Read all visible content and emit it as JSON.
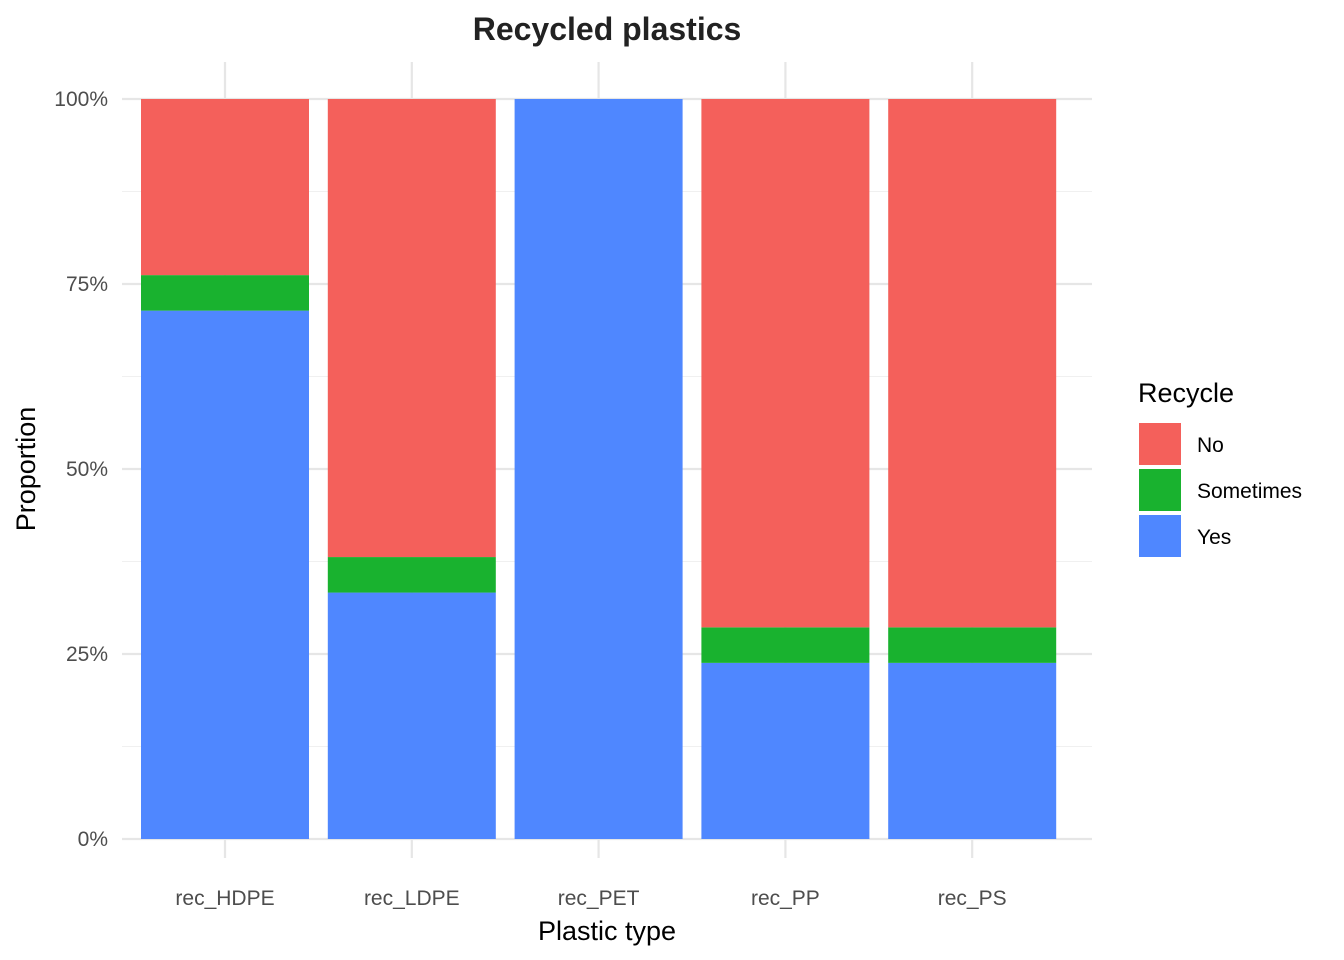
{
  "chart_data": {
    "type": "bar",
    "stacked": true,
    "title": "Recycled plastics",
    "xlabel": "Plastic type",
    "ylabel": "Proportion",
    "ylim": [
      0,
      1
    ],
    "yticks": [
      0,
      0.25,
      0.5,
      0.75,
      1
    ],
    "ytick_labels": [
      "0%",
      "25%",
      "50%",
      "75%",
      "100%"
    ],
    "grid": true,
    "categories": [
      "rec_HDPE",
      "rec_LDPE",
      "rec_PET",
      "rec_PP",
      "rec_PS"
    ],
    "series": [
      {
        "name": "Yes",
        "color": "#4f87ff",
        "values": [
          0.714,
          0.333,
          1.0,
          0.238,
          0.238
        ]
      },
      {
        "name": "Sometimes",
        "color": "#19b22f",
        "values": [
          0.048,
          0.048,
          0.0,
          0.048,
          0.048
        ]
      },
      {
        "name": "No",
        "color": "#f4605b",
        "values": [
          0.238,
          0.619,
          0.0,
          0.714,
          0.714
        ]
      }
    ],
    "legend": {
      "title": "Recycle",
      "position": "right",
      "order": [
        "No",
        "Sometimes",
        "Yes"
      ]
    }
  }
}
